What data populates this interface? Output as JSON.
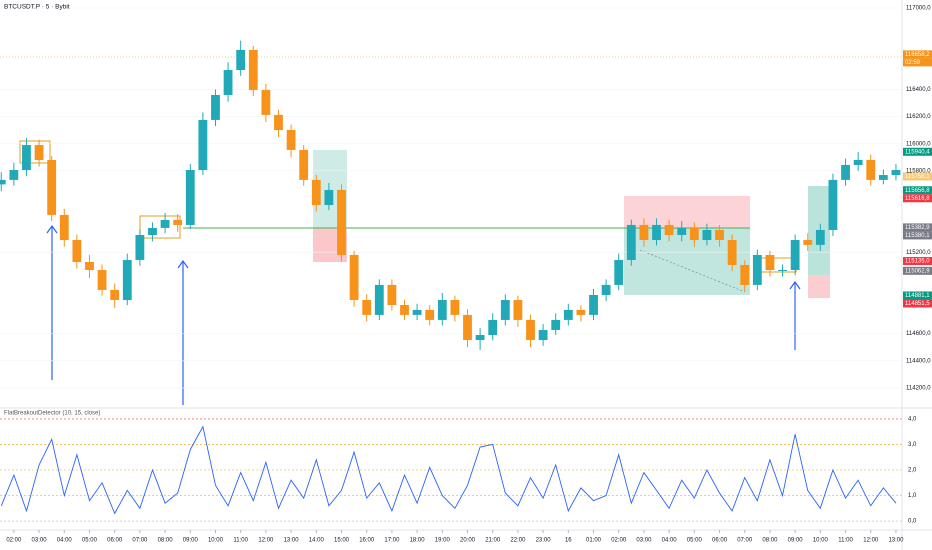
{
  "header": {
    "title": "BTCUSDT.P · 5 · Bybit",
    "indicator": "FlatBreakoutDetector (10, 15, close)"
  },
  "chart_data": [
    {
      "type": "candlestick",
      "up_color": "#22a9b8",
      "down_color": "#f7931a",
      "xlim": [
        1.45,
        37.24
      ],
      "ylim": [
        114074,
        117059
      ],
      "x": [
        1.5,
        2,
        2.5,
        3,
        3.5,
        4,
        4.5,
        5,
        5.5,
        6,
        6.5,
        7,
        7.5,
        8,
        8.5,
        9,
        9.5,
        10,
        10.5,
        11,
        11.5,
        12,
        12.5,
        13,
        13.5,
        14,
        14.5,
        15,
        15.5,
        16,
        16.5,
        17,
        17.5,
        18,
        18.5,
        19,
        19.5,
        20,
        20.5,
        21,
        21.5,
        22,
        22.5,
        23,
        23.5,
        24,
        24.5,
        25,
        25.5,
        26,
        26.5,
        27,
        27.5,
        28,
        28.5,
        29,
        29.5,
        30,
        30.5,
        31,
        31.5,
        32,
        32.5,
        33,
        33.5,
        34,
        34.5,
        35,
        35.5,
        36,
        36.5,
        37
      ],
      "open": [
        115700,
        115733,
        115806,
        115990,
        115880,
        115475,
        115290,
        115128,
        115069,
        114922,
        114848,
        115143,
        115327,
        115379,
        115438,
        115401,
        115806,
        116175,
        116359,
        116543,
        116691,
        116396,
        116212,
        116101,
        115954,
        115733,
        115548,
        115659,
        115180,
        114848,
        114738,
        114959,
        114811,
        114738,
        114775,
        114701,
        114848,
        114738,
        114553,
        114590,
        114701,
        114848,
        114701,
        114553,
        114627,
        114701,
        114775,
        114738,
        114885,
        114959,
        115143,
        115401,
        115290,
        115401,
        115327,
        115379,
        115290,
        115364,
        115290,
        115106,
        114959,
        115180,
        115069,
        115069,
        115290,
        115254,
        115364,
        115733,
        115843,
        115880,
        115733,
        115769
      ],
      "high": [
        115790,
        115860,
        116040,
        116030,
        115910,
        115520,
        115330,
        115180,
        115110,
        114970,
        115190,
        115370,
        115420,
        115490,
        115480,
        115850,
        116230,
        116400,
        116600,
        116760,
        116720,
        116440,
        116250,
        116140,
        115990,
        115770,
        115710,
        115700,
        115210,
        114890,
        115000,
        115000,
        114850,
        114820,
        114810,
        114900,
        114880,
        114780,
        114640,
        114750,
        114890,
        114880,
        114740,
        114670,
        114750,
        114820,
        114810,
        114930,
        115000,
        115190,
        115440,
        115450,
        115450,
        115440,
        115430,
        115420,
        115410,
        115400,
        115330,
        115140,
        115220,
        115210,
        115110,
        115330,
        115340,
        115410,
        115780,
        115890,
        115940,
        115920,
        115810,
        115850
      ],
      "low": [
        115650,
        115690,
        115760,
        115830,
        115430,
        115240,
        115080,
        115010,
        114880,
        114790,
        114810,
        115100,
        115280,
        115340,
        115350,
        115370,
        115770,
        116130,
        116310,
        116500,
        116350,
        116160,
        116050,
        115900,
        115690,
        115500,
        115510,
        115130,
        114800,
        114690,
        114700,
        114770,
        114700,
        114700,
        114660,
        114660,
        114690,
        114500,
        114480,
        114550,
        114660,
        114650,
        114500,
        114510,
        114590,
        114660,
        114690,
        114700,
        114840,
        114920,
        115100,
        115240,
        115250,
        115280,
        115280,
        115240,
        115250,
        115240,
        115060,
        114910,
        114920,
        115020,
        115020,
        115030,
        115210,
        115210,
        115320,
        115690,
        115800,
        115690,
        115700,
        115730
      ],
      "close": [
        115733,
        115806,
        115990,
        115880,
        115475,
        115290,
        115128,
        115069,
        114922,
        114848,
        115143,
        115327,
        115379,
        115438,
        115401,
        115806,
        116175,
        116359,
        116543,
        116691,
        116396,
        116212,
        116101,
        115954,
        115733,
        115548,
        115659,
        115180,
        114848,
        114738,
        114959,
        114811,
        114738,
        114775,
        114701,
        114848,
        114738,
        114553,
        114590,
        114701,
        114848,
        114701,
        114553,
        114627,
        114701,
        114775,
        114738,
        114885,
        114959,
        115143,
        115401,
        115290,
        115401,
        115327,
        115379,
        115290,
        115364,
        115290,
        115106,
        114959,
        115180,
        115069,
        115069,
        115290,
        115254,
        115364,
        115733,
        115843,
        115880,
        115733,
        115769,
        115806
      ],
      "yticks": [
        {
          "value": 117000,
          "label": "117000,0"
        },
        {
          "value": 116400,
          "label": "116400,0"
        },
        {
          "value": 116200,
          "label": "116200,0"
        },
        {
          "value": 116000,
          "label": "116000,0"
        },
        {
          "value": 115800,
          "label": "115800,0"
        },
        {
          "value": 115200,
          "label": "115200,0"
        },
        {
          "value": 114600,
          "label": "114600,0"
        },
        {
          "value": 114400,
          "label": "114400,0"
        },
        {
          "value": 114200,
          "label": "114200,0"
        }
      ],
      "price_tags": [
        {
          "value": 116658.2,
          "label": "116658,2",
          "color": "#f7931a"
        },
        {
          "value": 115940.4,
          "label": "115940,4",
          "color": "#089981"
        },
        {
          "value": 115758.1,
          "label": "115758,1",
          "color": "#f5c97a"
        },
        {
          "value": 115656.8,
          "label": "115656,8",
          "color": "#089981"
        },
        {
          "value": 115616.8,
          "label": "115616,8",
          "color": "#f23645"
        },
        {
          "value": 115382.9,
          "label": "115382,9",
          "color": "#787b86"
        },
        {
          "value": 115380.1,
          "label": "115380,1",
          "color": "#787b86"
        },
        {
          "value": 115135.0,
          "label": "115135,0",
          "color": "#f23645"
        },
        {
          "value": 115062.9,
          "label": "115062,9",
          "color": "#787b86"
        },
        {
          "value": 114881.1,
          "label": "114881,1",
          "color": "#089981"
        },
        {
          "value": 114851.5,
          "label": "114851,5",
          "color": "#f23645"
        }
      ],
      "countdown": "02:59"
    },
    {
      "type": "line",
      "color": "#2962ff",
      "xlim": [
        1.45,
        37.24
      ],
      "ylim": [
        -0.27,
        4.27
      ],
      "x": [
        1.5,
        2,
        2.5,
        3,
        3.5,
        4,
        4.5,
        5,
        5.5,
        6,
        6.5,
        7,
        7.5,
        8,
        8.5,
        9,
        9.5,
        10,
        10.5,
        11,
        11.5,
        12,
        12.5,
        13,
        13.5,
        14,
        14.5,
        15,
        15.5,
        16,
        16.5,
        17,
        17.5,
        18,
        18.5,
        19,
        19.5,
        20,
        20.5,
        21,
        21.5,
        22,
        22.5,
        23,
        23.5,
        24,
        24.5,
        25,
        25.5,
        26,
        26.5,
        27,
        27.5,
        28,
        28.5,
        29,
        29.5,
        30,
        30.5,
        31,
        31.5,
        32,
        32.5,
        33,
        33.5,
        34,
        34.5,
        35,
        35.5,
        36,
        36.5,
        37
      ],
      "values": [
        0.6,
        1.8,
        0.4,
        2.2,
        3.2,
        1.0,
        2.6,
        0.8,
        1.5,
        0.3,
        1.2,
        0.5,
        2.0,
        0.7,
        1.1,
        2.8,
        3.7,
        1.4,
        0.6,
        1.9,
        0.8,
        2.3,
        0.5,
        1.6,
        0.9,
        2.4,
        0.6,
        1.2,
        2.7,
        0.9,
        1.5,
        0.4,
        1.8,
        0.7,
        2.1,
        1.0,
        0.5,
        1.4,
        2.9,
        3.0,
        1.1,
        0.6,
        1.7,
        0.9,
        2.2,
        0.4,
        1.3,
        0.8,
        1.0,
        2.6,
        0.7,
        1.9,
        1.2,
        0.5,
        1.6,
        0.9,
        2.0,
        1.1,
        0.4,
        1.7,
        0.8,
        2.4,
        1.0,
        3.4,
        1.2,
        0.5,
        2.0,
        0.9,
        1.6,
        0.6,
        1.3,
        0.7
      ],
      "yticks": [
        {
          "value": 4,
          "label": "4,0"
        },
        {
          "value": 3,
          "label": "3,0"
        },
        {
          "value": 2,
          "label": "2,0"
        },
        {
          "value": 1,
          "label": "1,0"
        },
        {
          "value": 0,
          "label": "0,0"
        }
      ],
      "level_colors": [
        "#f23645",
        "#ff9800",
        "#e0b020",
        "#b2b5be",
        "#b2b5be"
      ],
      "xticks": [
        {
          "value": 2,
          "label": "02:00"
        },
        {
          "value": 3,
          "label": "03:00"
        },
        {
          "value": 4,
          "label": "04:00"
        },
        {
          "value": 5,
          "label": "05:00"
        },
        {
          "value": 6,
          "label": "06:00"
        },
        {
          "value": 7,
          "label": "07:00"
        },
        {
          "value": 8,
          "label": "08:00"
        },
        {
          "value": 9,
          "label": "09:00"
        },
        {
          "value": 10,
          "label": "10:00"
        },
        {
          "value": 11,
          "label": "11:00"
        },
        {
          "value": 12,
          "label": "12:00"
        },
        {
          "value": 13,
          "label": "13:00"
        },
        {
          "value": 14,
          "label": "14:00"
        },
        {
          "value": 15,
          "label": "15:00"
        },
        {
          "value": 16,
          "label": "16:00"
        },
        {
          "value": 17,
          "label": "17:00"
        },
        {
          "value": 18,
          "label": "18:00"
        },
        {
          "value": 19,
          "label": "19:00"
        },
        {
          "value": 20,
          "label": "20:00"
        },
        {
          "value": 21,
          "label": "21:00"
        },
        {
          "value": 22,
          "label": "22:00"
        },
        {
          "value": 23,
          "label": "23:00"
        },
        {
          "value": 24,
          "label": "16"
        },
        {
          "value": 25,
          "label": "01:00"
        },
        {
          "value": 26,
          "label": "02:00"
        },
        {
          "value": 27,
          "label": "03:00"
        },
        {
          "value": 28,
          "label": "04:00"
        },
        {
          "value": 29,
          "label": "05:00"
        },
        {
          "value": 30,
          "label": "06:00"
        },
        {
          "value": 31,
          "label": "07:00"
        },
        {
          "value": 32,
          "label": "08:00"
        },
        {
          "value": 33,
          "label": "09:00"
        },
        {
          "value": 34,
          "label": "10:00"
        },
        {
          "value": 35,
          "label": "11:00"
        },
        {
          "value": 36,
          "label": "12:00"
        },
        {
          "value": 37,
          "label": "13:00"
        }
      ]
    }
  ]
}
